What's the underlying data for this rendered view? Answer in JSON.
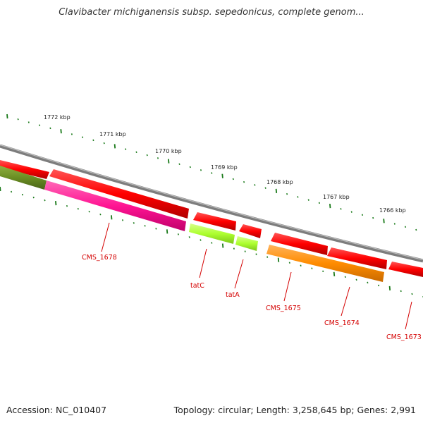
{
  "title": "Clavibacter michiganensis subsp. sepedonicus, complete genom...",
  "accession": "Accession: NC_010407",
  "summary": "Topology: circular; Length: 3,258,645 bp; Genes: 2,991",
  "ruler_labels": [
    "1772 kbp",
    "1771 kbp",
    "1770 kbp",
    "1769 kbp",
    "1768 kbp",
    "1767 kbp",
    "1766 kbp"
  ],
  "gene_labels": [
    "CMS_1678",
    "tatC",
    "tatA",
    "CMS_1675",
    "CMS_1674",
    "CMS_1673"
  ],
  "colors": {
    "backbone": "#8a8a8a",
    "cds_red": "#ff0000",
    "magenta": "#ff1493",
    "olive": "#6b8e23",
    "lime": "#adff2f",
    "orange": "#ff8c00",
    "tick": "#1a7a1a",
    "label": "#d40000"
  }
}
